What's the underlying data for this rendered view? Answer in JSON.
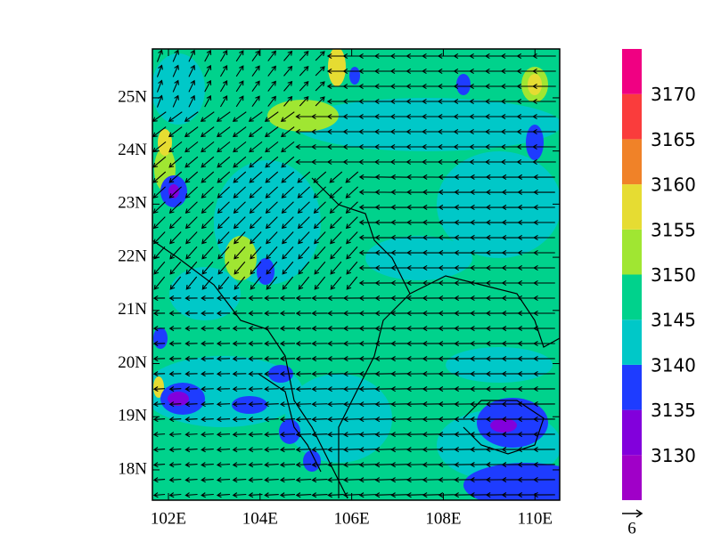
{
  "map": {
    "xlim": [
      101.65,
      110.54
    ],
    "ylim": [
      17.43,
      25.92
    ],
    "xticks": [
      {
        "value": 102,
        "label": "102E"
      },
      {
        "value": 104,
        "label": "104E"
      },
      {
        "value": 106,
        "label": "106E"
      },
      {
        "value": 108,
        "label": "108E"
      },
      {
        "value": 110,
        "label": "110E"
      }
    ],
    "yticks": [
      {
        "value": 18,
        "label": "18N"
      },
      {
        "value": 19,
        "label": "19N"
      },
      {
        "value": 20,
        "label": "20N"
      },
      {
        "value": 21,
        "label": "21N"
      },
      {
        "value": 22,
        "label": "22N"
      },
      {
        "value": 23,
        "label": "23N"
      },
      {
        "value": 24,
        "label": "24N"
      },
      {
        "value": 25,
        "label": "25N"
      }
    ],
    "colorbar": {
      "range": [
        3125,
        3175
      ],
      "levels": [
        3130,
        3135,
        3140,
        3145,
        3150,
        3155,
        3160,
        3165,
        3170
      ],
      "colors": [
        "#a000c8",
        "#8200dc",
        "#1e3cff",
        "#00c8c8",
        "#00d28c",
        "#a0e632",
        "#e6dc32",
        "#f08228",
        "#fa3c3c",
        "#f00082"
      ]
    },
    "reference_vector": 6
  }
}
